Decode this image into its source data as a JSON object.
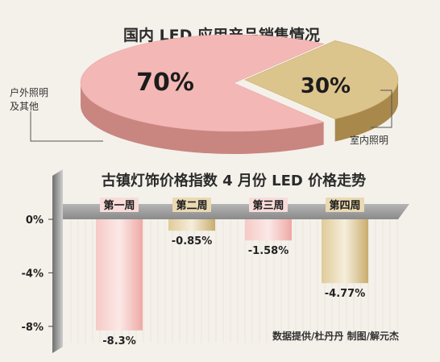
{
  "colors": {
    "pink": "#f3b8b6",
    "pink_dark": "#c98580",
    "gold": "#dcc48d",
    "gold_dark": "#a9884c",
    "axis_gray": "#8a8a8a"
  },
  "chart_data": [
    {
      "type": "pie",
      "title": "国内 LED 应用产品销售情况",
      "labels": [
        "户外照明及其他",
        "室内照明"
      ],
      "label_lines": [
        [
          "户外照明",
          "及其他"
        ],
        [
          "室内照明"
        ]
      ],
      "values": [
        70,
        30
      ],
      "value_labels": [
        "70%",
        "30%"
      ],
      "colors": [
        "#f3b8b6",
        "#dcc48d"
      ]
    },
    {
      "type": "bar",
      "title": "古镇灯饰价格指数 4 月份 LED 价格走势",
      "categories": [
        "第一周",
        "第二周",
        "第三周",
        "第四周"
      ],
      "values": [
        -8.3,
        -0.85,
        -1.58,
        -4.77
      ],
      "value_labels": [
        "-8.3%",
        "-0.85%",
        "-1.58%",
        "-4.77%"
      ],
      "bar_colors": [
        "pink",
        "gold",
        "pink",
        "gold"
      ],
      "y_ticks": [
        0,
        -4,
        -8
      ],
      "y_tick_labels": [
        "0%",
        "-4%",
        "-8%"
      ],
      "ylim": [
        -9.4,
        0
      ]
    }
  ],
  "credit": "数据提供/杜丹丹  制图/解元杰"
}
